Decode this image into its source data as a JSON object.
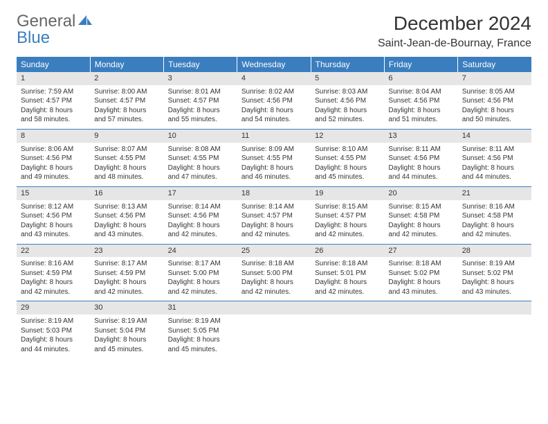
{
  "logo": {
    "text1": "General",
    "text2": "Blue"
  },
  "title": "December 2024",
  "location": "Saint-Jean-de-Bournay, France",
  "colors": {
    "header_bg": "#3a7ebf",
    "header_text": "#ffffff",
    "daynum_bg": "#e6e6e6",
    "text": "#333333",
    "border": "#3a7ebf",
    "logo_gray": "#666666",
    "logo_blue": "#3a7ebf"
  },
  "weekdays": [
    "Sunday",
    "Monday",
    "Tuesday",
    "Wednesday",
    "Thursday",
    "Friday",
    "Saturday"
  ],
  "weeks": [
    [
      {
        "n": "1",
        "sr": "Sunrise: 7:59 AM",
        "ss": "Sunset: 4:57 PM",
        "d1": "Daylight: 8 hours",
        "d2": "and 58 minutes."
      },
      {
        "n": "2",
        "sr": "Sunrise: 8:00 AM",
        "ss": "Sunset: 4:57 PM",
        "d1": "Daylight: 8 hours",
        "d2": "and 57 minutes."
      },
      {
        "n": "3",
        "sr": "Sunrise: 8:01 AM",
        "ss": "Sunset: 4:57 PM",
        "d1": "Daylight: 8 hours",
        "d2": "and 55 minutes."
      },
      {
        "n": "4",
        "sr": "Sunrise: 8:02 AM",
        "ss": "Sunset: 4:56 PM",
        "d1": "Daylight: 8 hours",
        "d2": "and 54 minutes."
      },
      {
        "n": "5",
        "sr": "Sunrise: 8:03 AM",
        "ss": "Sunset: 4:56 PM",
        "d1": "Daylight: 8 hours",
        "d2": "and 52 minutes."
      },
      {
        "n": "6",
        "sr": "Sunrise: 8:04 AM",
        "ss": "Sunset: 4:56 PM",
        "d1": "Daylight: 8 hours",
        "d2": "and 51 minutes."
      },
      {
        "n": "7",
        "sr": "Sunrise: 8:05 AM",
        "ss": "Sunset: 4:56 PM",
        "d1": "Daylight: 8 hours",
        "d2": "and 50 minutes."
      }
    ],
    [
      {
        "n": "8",
        "sr": "Sunrise: 8:06 AM",
        "ss": "Sunset: 4:56 PM",
        "d1": "Daylight: 8 hours",
        "d2": "and 49 minutes."
      },
      {
        "n": "9",
        "sr": "Sunrise: 8:07 AM",
        "ss": "Sunset: 4:55 PM",
        "d1": "Daylight: 8 hours",
        "d2": "and 48 minutes."
      },
      {
        "n": "10",
        "sr": "Sunrise: 8:08 AM",
        "ss": "Sunset: 4:55 PM",
        "d1": "Daylight: 8 hours",
        "d2": "and 47 minutes."
      },
      {
        "n": "11",
        "sr": "Sunrise: 8:09 AM",
        "ss": "Sunset: 4:55 PM",
        "d1": "Daylight: 8 hours",
        "d2": "and 46 minutes."
      },
      {
        "n": "12",
        "sr": "Sunrise: 8:10 AM",
        "ss": "Sunset: 4:55 PM",
        "d1": "Daylight: 8 hours",
        "d2": "and 45 minutes."
      },
      {
        "n": "13",
        "sr": "Sunrise: 8:11 AM",
        "ss": "Sunset: 4:56 PM",
        "d1": "Daylight: 8 hours",
        "d2": "and 44 minutes."
      },
      {
        "n": "14",
        "sr": "Sunrise: 8:11 AM",
        "ss": "Sunset: 4:56 PM",
        "d1": "Daylight: 8 hours",
        "d2": "and 44 minutes."
      }
    ],
    [
      {
        "n": "15",
        "sr": "Sunrise: 8:12 AM",
        "ss": "Sunset: 4:56 PM",
        "d1": "Daylight: 8 hours",
        "d2": "and 43 minutes."
      },
      {
        "n": "16",
        "sr": "Sunrise: 8:13 AM",
        "ss": "Sunset: 4:56 PM",
        "d1": "Daylight: 8 hours",
        "d2": "and 43 minutes."
      },
      {
        "n": "17",
        "sr": "Sunrise: 8:14 AM",
        "ss": "Sunset: 4:56 PM",
        "d1": "Daylight: 8 hours",
        "d2": "and 42 minutes."
      },
      {
        "n": "18",
        "sr": "Sunrise: 8:14 AM",
        "ss": "Sunset: 4:57 PM",
        "d1": "Daylight: 8 hours",
        "d2": "and 42 minutes."
      },
      {
        "n": "19",
        "sr": "Sunrise: 8:15 AM",
        "ss": "Sunset: 4:57 PM",
        "d1": "Daylight: 8 hours",
        "d2": "and 42 minutes."
      },
      {
        "n": "20",
        "sr": "Sunrise: 8:15 AM",
        "ss": "Sunset: 4:58 PM",
        "d1": "Daylight: 8 hours",
        "d2": "and 42 minutes."
      },
      {
        "n": "21",
        "sr": "Sunrise: 8:16 AM",
        "ss": "Sunset: 4:58 PM",
        "d1": "Daylight: 8 hours",
        "d2": "and 42 minutes."
      }
    ],
    [
      {
        "n": "22",
        "sr": "Sunrise: 8:16 AM",
        "ss": "Sunset: 4:59 PM",
        "d1": "Daylight: 8 hours",
        "d2": "and 42 minutes."
      },
      {
        "n": "23",
        "sr": "Sunrise: 8:17 AM",
        "ss": "Sunset: 4:59 PM",
        "d1": "Daylight: 8 hours",
        "d2": "and 42 minutes."
      },
      {
        "n": "24",
        "sr": "Sunrise: 8:17 AM",
        "ss": "Sunset: 5:00 PM",
        "d1": "Daylight: 8 hours",
        "d2": "and 42 minutes."
      },
      {
        "n": "25",
        "sr": "Sunrise: 8:18 AM",
        "ss": "Sunset: 5:00 PM",
        "d1": "Daylight: 8 hours",
        "d2": "and 42 minutes."
      },
      {
        "n": "26",
        "sr": "Sunrise: 8:18 AM",
        "ss": "Sunset: 5:01 PM",
        "d1": "Daylight: 8 hours",
        "d2": "and 42 minutes."
      },
      {
        "n": "27",
        "sr": "Sunrise: 8:18 AM",
        "ss": "Sunset: 5:02 PM",
        "d1": "Daylight: 8 hours",
        "d2": "and 43 minutes."
      },
      {
        "n": "28",
        "sr": "Sunrise: 8:19 AM",
        "ss": "Sunset: 5:02 PM",
        "d1": "Daylight: 8 hours",
        "d2": "and 43 minutes."
      }
    ],
    [
      {
        "n": "29",
        "sr": "Sunrise: 8:19 AM",
        "ss": "Sunset: 5:03 PM",
        "d1": "Daylight: 8 hours",
        "d2": "and 44 minutes."
      },
      {
        "n": "30",
        "sr": "Sunrise: 8:19 AM",
        "ss": "Sunset: 5:04 PM",
        "d1": "Daylight: 8 hours",
        "d2": "and 45 minutes."
      },
      {
        "n": "31",
        "sr": "Sunrise: 8:19 AM",
        "ss": "Sunset: 5:05 PM",
        "d1": "Daylight: 8 hours",
        "d2": "and 45 minutes."
      },
      {
        "n": "",
        "sr": "",
        "ss": "",
        "d1": "",
        "d2": ""
      },
      {
        "n": "",
        "sr": "",
        "ss": "",
        "d1": "",
        "d2": ""
      },
      {
        "n": "",
        "sr": "",
        "ss": "",
        "d1": "",
        "d2": ""
      },
      {
        "n": "",
        "sr": "",
        "ss": "",
        "d1": "",
        "d2": ""
      }
    ]
  ]
}
